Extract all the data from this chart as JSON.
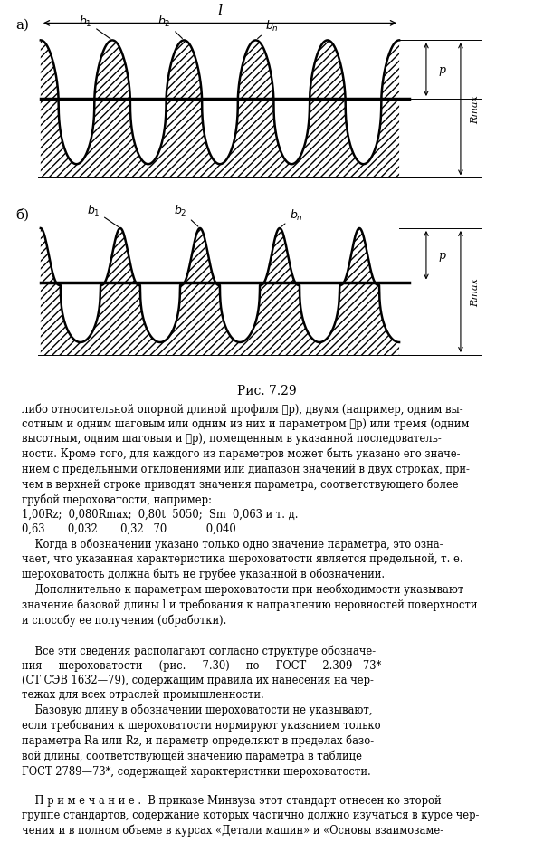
{
  "title_a": "а)",
  "title_b": "б)",
  "caption": "Рис. 7.29",
  "label_l": "l",
  "label_p": "p",
  "label_rmax": "Rmax",
  "bg": "#ffffff",
  "text_lines": [
    "либо относительной опорной длиной профиля ℓp), двумя (например, одним вы-",
    "сотным и одним шаговым или одним из них и параметром ℓp) или тремя (одним",
    "высотным, одним шаговым и ℓp), помещенным в указанной последователь-",
    "ности. Кроме того, для каждого из параметров может быть указано его значе-",
    "нием с предельными отклонениями или диапазон значений в двух строках, при-",
    "чем в верхней строке приводят значения параметра, соответствующего более",
    "грубой шероховатости, например:",
    "1,00Rz;  0,080Rmax;  0,80t  5050;  Sm  0,063 и т. д.",
    "0,63       0,032       0,32   70            0,040",
    "    Когда в обозначении указано только одно значение параметра, это озна-",
    "чает, что указанная характеристика шероховатости является предельной, т. е.",
    "шероховатость должна быть не грубее указанной в обозначении.",
    "    Дополнительно к параметрам шероховатости при необходимости указывают",
    "значение базовой длины l и требования к направлению неровностей поверхности",
    "и способу ее получения (обработки).",
    "",
    "    Все эти сведения располагают согласно структуре обозначе-",
    "ния     шероховатости     (рис.     7.30)     по     ГОСТ     2.309—73*",
    "(СТ СЭВ 1632—79), содержащим правила их нанесения на чер-",
    "тежах для всех отраслей промышленности.",
    "    Базовую длину в обозначении шероховатости не указывают,",
    "если требования к шероховатости нормируют указанием только",
    "параметра Ra или Rz, и параметр определяют в пределах базо-",
    "вой длины, соответствующей значению параметра в таблице",
    "ГОСТ 2789—73*, содержащей характеристики шероховатости.",
    "",
    "    П р и м е ч а н и е .  В приказе Минвуза этот стандарт отнесен ко второй",
    "группе стандартов, содержание которых частично должно изучаться в курсе чер-",
    "чения и в полном объеме в курсах «Детали машин» и «Основы взаимозаме-"
  ]
}
